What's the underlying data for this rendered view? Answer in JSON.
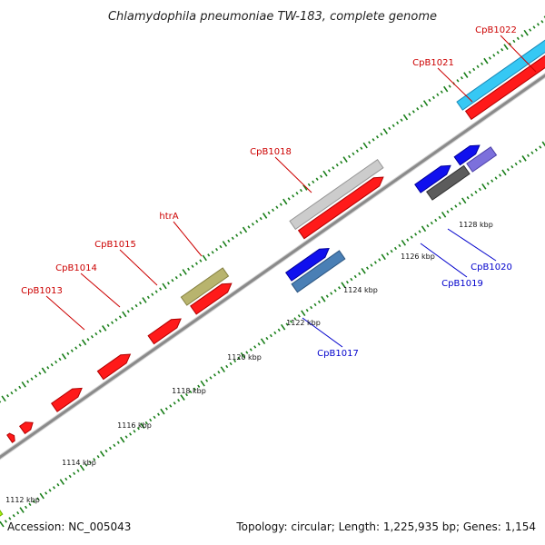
{
  "title": "Chlamydophila pneumoniae TW-183, complete genome",
  "footer": {
    "accession": "Accession: NC_005043",
    "summary": "Topology: circular; Length: 1,225,935 bp; Genes: 1,154"
  },
  "colors": {
    "forward_label": "#cc0000",
    "reverse_label": "#0000cc",
    "backbone": "#8a8a8a",
    "tick": "#1a7f1a"
  },
  "scale_labels": [
    "1112 kbp",
    "1114 kbp",
    "1116 kbp",
    "1118 kbp",
    "1120 kbp",
    "1122 kbp",
    "1124 kbp",
    "1126 kbp",
    "1128 kbp"
  ],
  "gene_labels": {
    "cpb1013": "CpB1013",
    "cpb1014": "CpB1014",
    "cpb1015": "CpB1015",
    "htra": "htrA",
    "cpb1017": "CpB1017",
    "cpb1018": "CpB1018",
    "cpb1019": "CpB1019",
    "cpb1020": "CpB1020",
    "cpb1021": "CpB1021",
    "cpb1022": "CpB1022"
  }
}
